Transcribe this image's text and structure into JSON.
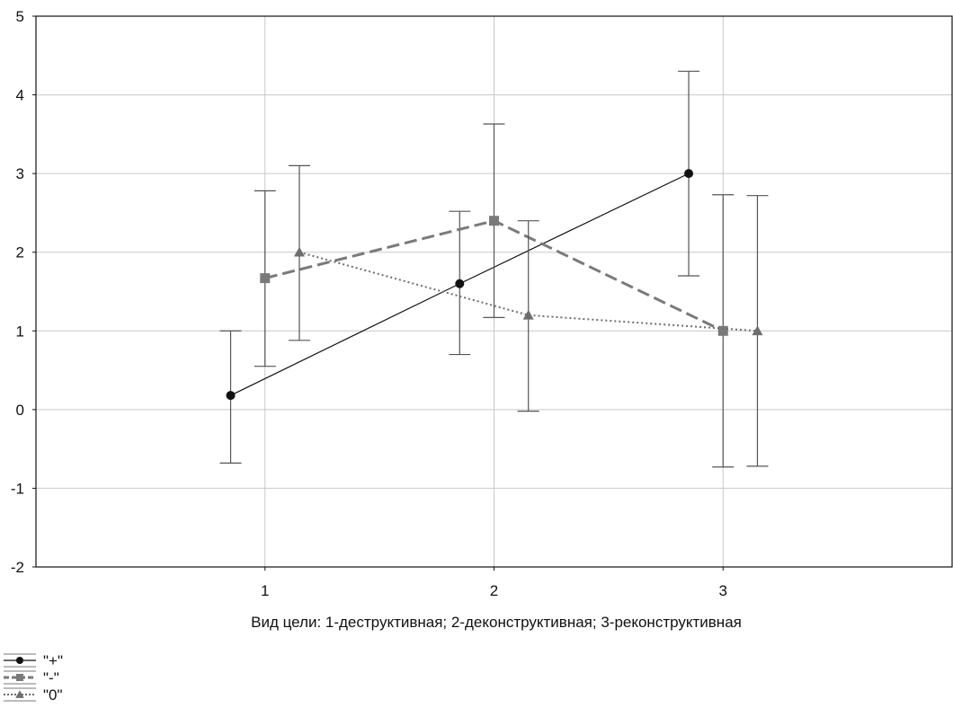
{
  "chart_data": {
    "type": "line",
    "title": "",
    "xlabel": "Вид цели: 1-деструктивная; 2-деконструктивная; 3-реконструктивная",
    "ylabel": "",
    "categories": [
      "1",
      "2",
      "3"
    ],
    "x": [
      1,
      2,
      3
    ],
    "xlim": [
      0,
      4
    ],
    "ylim": [
      -2,
      5
    ],
    "yticks": [
      "-2",
      "-1",
      "0",
      "1",
      "2",
      "3",
      "4",
      "5"
    ],
    "grid": true,
    "legend_position": "bottom-left",
    "series": [
      {
        "name": "\"+\"",
        "color": "#111111",
        "line_style": "solid",
        "marker": "circle",
        "values": [
          0.18,
          1.6,
          3.0
        ],
        "error_low": [
          -0.68,
          0.7,
          1.7
        ],
        "error_high": [
          1.0,
          2.52,
          4.3
        ]
      },
      {
        "name": "\"-\"",
        "color": "#7a7a7a",
        "line_style": "dashed",
        "marker": "square",
        "values": [
          1.67,
          2.4,
          1.0
        ],
        "error_low": [
          0.55,
          1.17,
          -0.73
        ],
        "error_high": [
          2.78,
          3.63,
          2.73
        ]
      },
      {
        "name": "\"0\"",
        "color": "#6e6e6e",
        "line_style": "dotted",
        "marker": "triangle",
        "values": [
          2.0,
          1.2,
          1.0
        ],
        "error_low": [
          0.88,
          -0.02,
          -0.72
        ],
        "error_high": [
          3.1,
          2.4,
          2.72
        ]
      }
    ]
  }
}
